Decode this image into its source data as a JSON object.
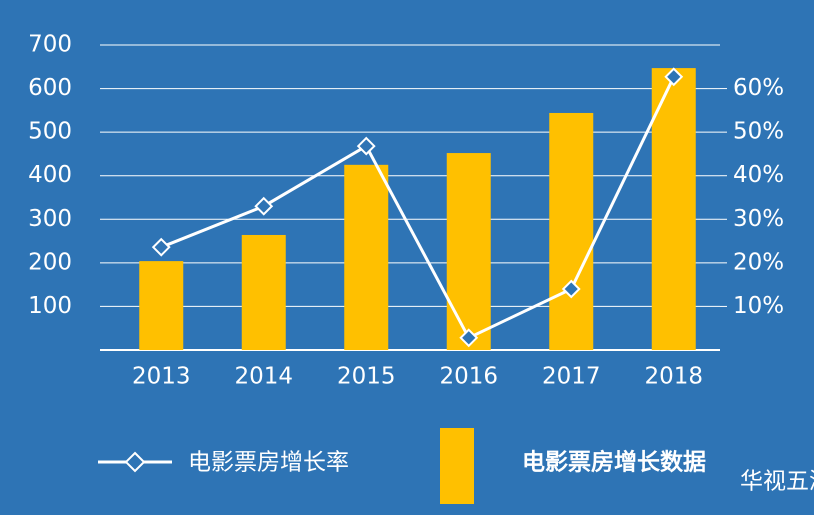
{
  "chart_data": {
    "type": "bar-line",
    "categories": [
      "2013",
      "2014",
      "2015",
      "2016",
      "2017",
      "2018"
    ],
    "series": [
      {
        "name": "电影票房增长率",
        "type": "line",
        "axis": "y2",
        "color": "#ffffff",
        "values": [
          23.6,
          33,
          46.8,
          2.8,
          14,
          62.7
        ]
      },
      {
        "name": "电影票房增长数据",
        "type": "bar",
        "axis": "y",
        "color": "#ffc000",
        "values": [
          204,
          264,
          425,
          452,
          544,
          647
        ]
      }
    ],
    "ylim": [
      0,
      700
    ],
    "yticks": [
      100,
      200,
      300,
      400,
      500,
      600,
      700
    ],
    "y2lim": [
      0,
      70
    ],
    "y2ticks": [
      {
        "value": 10,
        "label": "10%"
      },
      {
        "value": 20,
        "label": "20%"
      },
      {
        "value": 30,
        "label": "30%"
      },
      {
        "value": 40,
        "label": "40%"
      },
      {
        "value": 50,
        "label": "50%"
      },
      {
        "value": 60,
        "label": "60%"
      }
    ],
    "grid": true,
    "legend": "bottom",
    "watermark": "华视五洲"
  }
}
